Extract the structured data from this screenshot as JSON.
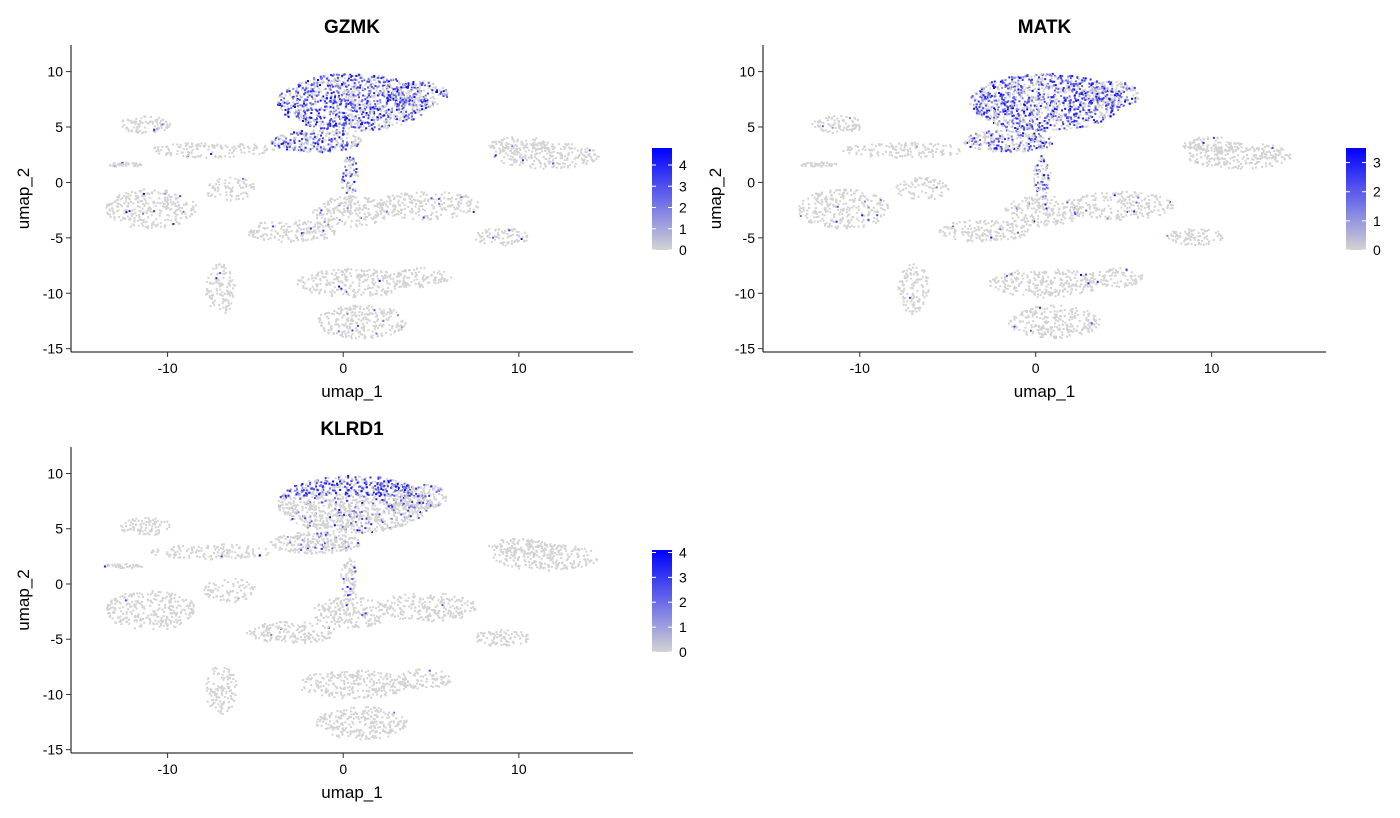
{
  "chart_data": [
    {
      "type": "scatter",
      "title": "GZMK",
      "xlabel": "umap_1",
      "ylabel": "umap_2",
      "xlim": [
        -15.5,
        16.5
      ],
      "ylim": [
        -15.3,
        12.4
      ],
      "xticks": [
        -10,
        0,
        10
      ],
      "yticks": [
        -15,
        -10,
        -5,
        0,
        5,
        10
      ],
      "grid": false,
      "legend": {
        "position": "right",
        "type": "colorbar",
        "min": 0,
        "max": 4.8,
        "ticks": [
          0,
          1,
          2,
          3,
          4
        ],
        "low_color": "#d3d3d3",
        "high_color": "#0000ff"
      },
      "series": [
        {
          "values": "expression level per cell (0 = grey, max = blue)"
        }
      ]
    },
    {
      "type": "scatter",
      "title": "MATK",
      "xlabel": "umap_1",
      "ylabel": "umap_2",
      "xlim": [
        -15.5,
        16.5
      ],
      "ylim": [
        -15.3,
        12.4
      ],
      "xticks": [
        -10,
        0,
        10
      ],
      "yticks": [
        -15,
        -10,
        -5,
        0,
        5,
        10
      ],
      "grid": false,
      "legend": {
        "position": "right",
        "type": "colorbar",
        "min": 0,
        "max": 3.5,
        "ticks": [
          0,
          1,
          2,
          3
        ],
        "low_color": "#d3d3d3",
        "high_color": "#0000ff"
      }
    },
    {
      "type": "scatter",
      "title": "KLRD1",
      "xlabel": "umap_1",
      "ylabel": "umap_2",
      "xlim": [
        -15.5,
        16.5
      ],
      "ylim": [
        -15.3,
        12.4
      ],
      "xticks": [
        -10,
        0,
        10
      ],
      "yticks": [
        -15,
        -10,
        -5,
        0,
        5,
        10
      ],
      "grid": false,
      "legend": {
        "position": "right",
        "type": "colorbar",
        "min": 0,
        "max": 4.1,
        "ticks": [
          0,
          1,
          2,
          3,
          4
        ],
        "low_color": "#d3d3d3",
        "high_color": "#0000ff"
      }
    }
  ]
}
